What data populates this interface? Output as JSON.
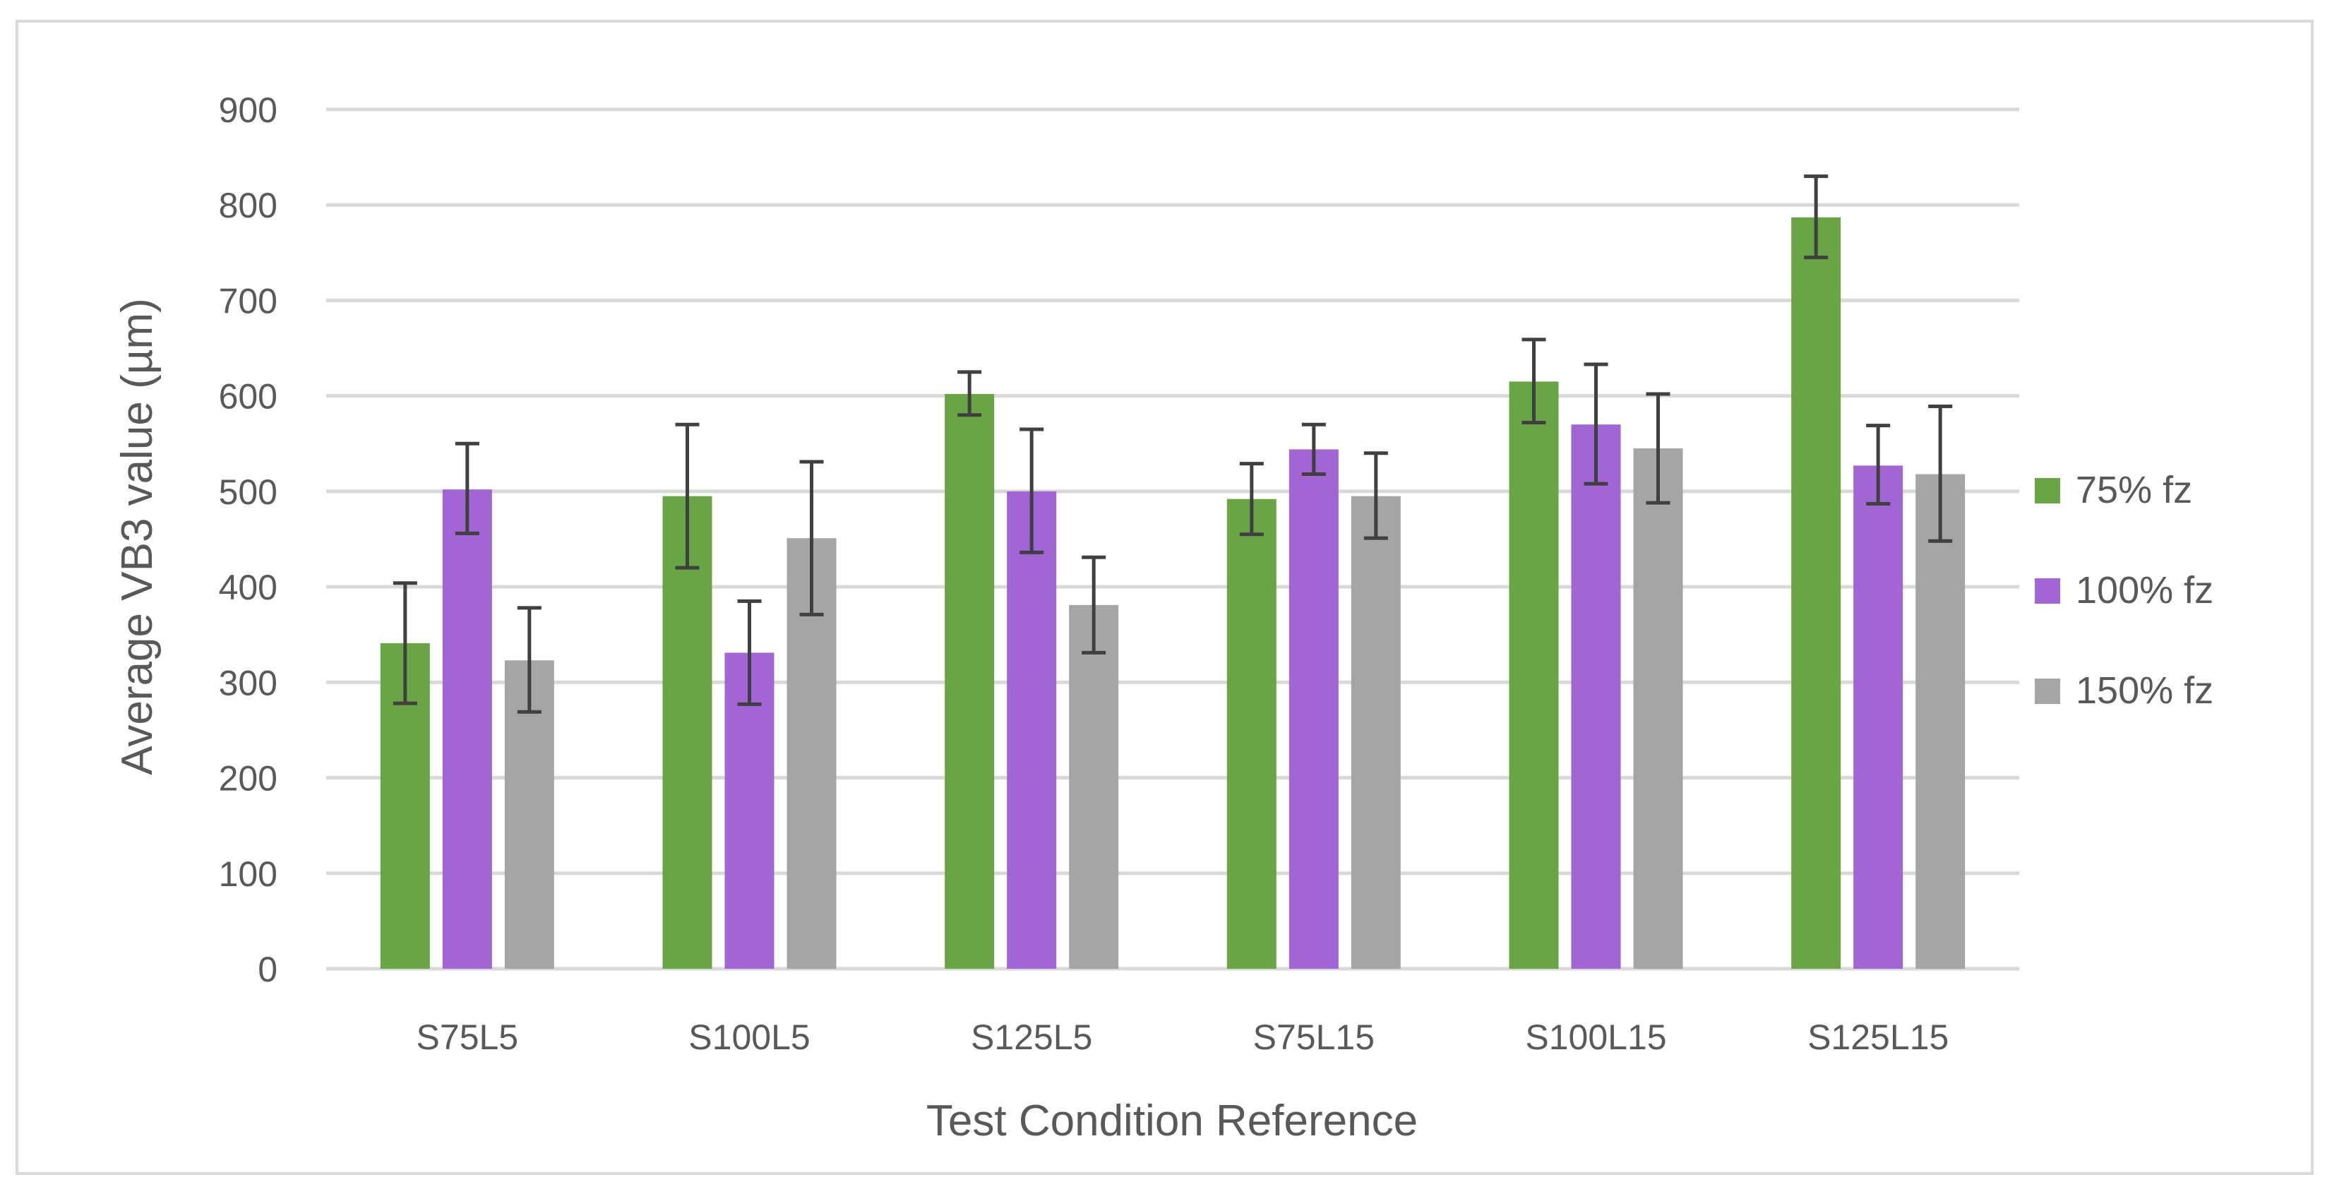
{
  "chart_data": {
    "type": "bar",
    "title": "",
    "xlabel": "Test Condition Reference",
    "ylabel": "Average VB3 value (µm)",
    "ylim": [
      0,
      900
    ],
    "yticks": [
      0,
      100,
      200,
      300,
      400,
      500,
      600,
      700,
      800,
      900
    ],
    "grid": true,
    "legend_position": "right",
    "categories": [
      "S75L5",
      "S100L5",
      "S125L5",
      "S75L15",
      "S100L15",
      "S125L15"
    ],
    "series": [
      {
        "name": "75% fz",
        "color": "#6aa545",
        "values": [
          341,
          495,
          602,
          492,
          615,
          787
        ],
        "error_low": [
          278,
          420,
          580,
          455,
          572,
          745
        ],
        "error_high": [
          404,
          570,
          625,
          529,
          659,
          830
        ]
      },
      {
        "name": "100% fz",
        "color": "#a166d4",
        "values": [
          502,
          331,
          500,
          544,
          570,
          527
        ],
        "error_low": [
          456,
          277,
          436,
          518,
          508,
          487
        ],
        "error_high": [
          550,
          385,
          565,
          570,
          633,
          569
        ]
      },
      {
        "name": "150% fz",
        "color": "#a5a5a5",
        "values": [
          323,
          451,
          381,
          495,
          545,
          518
        ],
        "error_low": [
          269,
          371,
          331,
          451,
          488,
          448
        ],
        "error_high": [
          378,
          531,
          431,
          540,
          602,
          589
        ]
      }
    ]
  }
}
